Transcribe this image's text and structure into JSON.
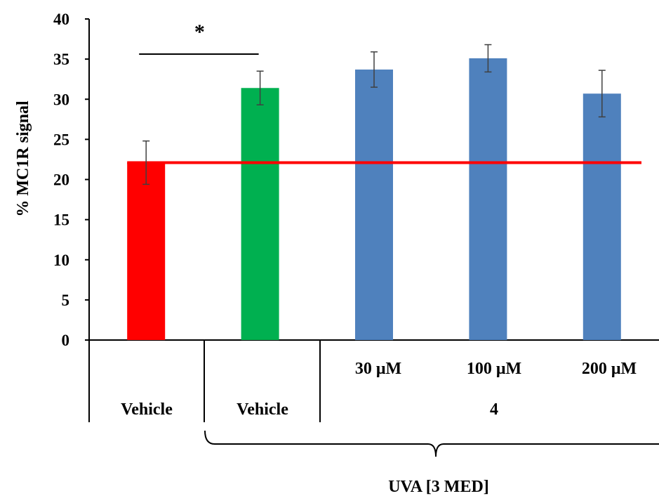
{
  "chart_data": {
    "type": "bar",
    "ylabel": "% MC1R signal",
    "ylim": [
      0,
      40
    ],
    "yticks": [
      0,
      5,
      10,
      15,
      20,
      25,
      30,
      35,
      40
    ],
    "grid": false,
    "categories": [
      "Vehicle",
      "Vehicle",
      "30 μM",
      "100 μM",
      "200 μM"
    ],
    "values": [
      22.1,
      31.4,
      33.7,
      35.1,
      30.7
    ],
    "error": [
      2.7,
      2.1,
      2.2,
      1.7,
      2.9
    ],
    "colors": [
      "#ff0000",
      "#00b050",
      "#4f81bd",
      "#4f81bd",
      "#4f81bd"
    ],
    "reference_line": {
      "value": 22.1,
      "color": "#ff0000"
    },
    "group_labels": {
      "concentrations": [
        "30 μM",
        "100 μM",
        "200 μM"
      ],
      "row2": [
        "Vehicle",
        "Vehicle",
        "4"
      ]
    },
    "bracket_label": "UVA [3 MED]",
    "significance": {
      "label": "*",
      "between": [
        0,
        1
      ]
    }
  }
}
